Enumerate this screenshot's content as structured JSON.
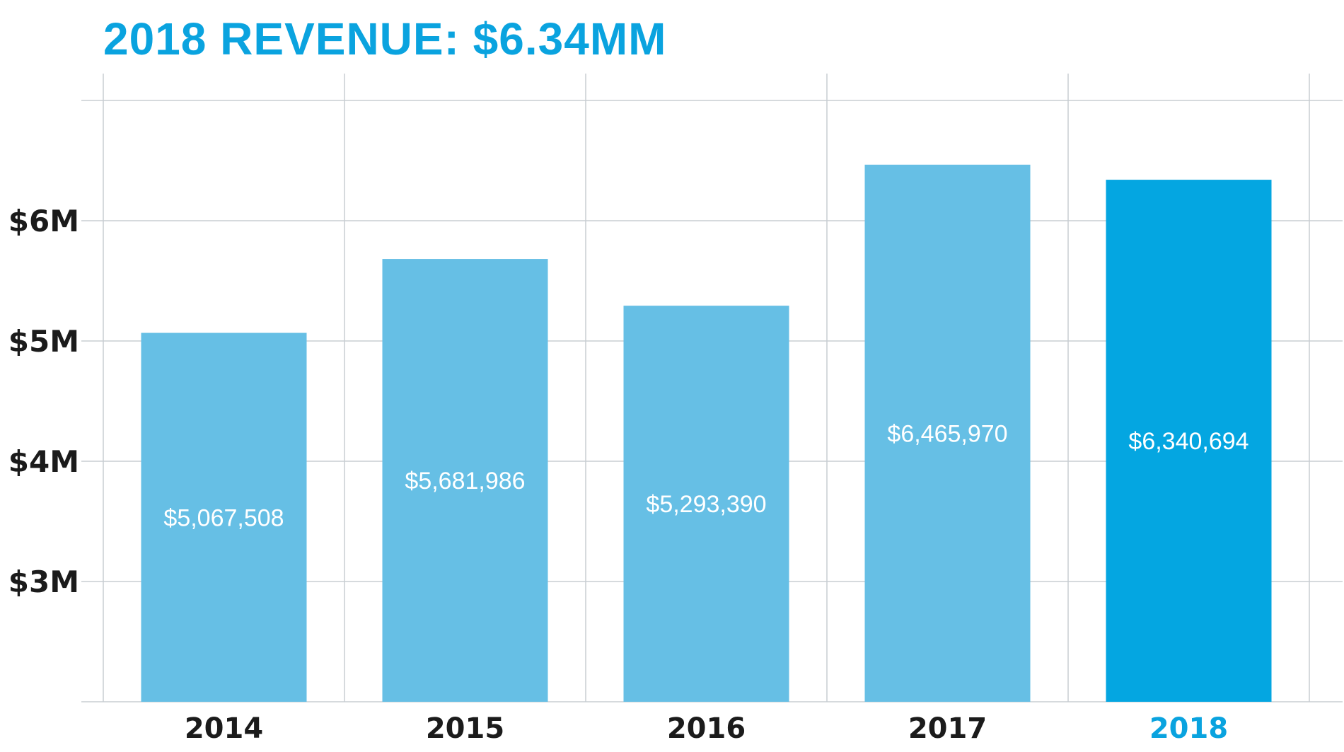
{
  "chart_data": {
    "type": "bar",
    "title": "2018 REVENUE: $6.34MM",
    "xlabel": "",
    "ylabel": "",
    "categories": [
      "2014",
      "2015",
      "2016",
      "2017",
      "2018"
    ],
    "values": [
      5067508,
      5681986,
      5293390,
      6465970,
      6340694
    ],
    "value_labels": [
      "$5,067,508",
      "$5,681,986",
      "$5,293,390",
      "$6,465,970",
      "$6,340,694"
    ],
    "highlight_category": "2018",
    "y_ticks": [
      {
        "value": 3000000,
        "label": "$3M"
      },
      {
        "value": 4000000,
        "label": "$4M"
      },
      {
        "value": 5000000,
        "label": "$5M"
      },
      {
        "value": 6000000,
        "label": "$6M"
      }
    ],
    "ylim": [
      2000000,
      7000000
    ],
    "grid": true,
    "legend": "none"
  },
  "colors": {
    "title": "#0aa3df",
    "bar": "#66bfe5",
    "bar_highlight": "#04a6e1",
    "tick_text": "#1b1b1b",
    "highlight_tick_text": "#0aa3df",
    "grid": "#c8cdd2"
  }
}
